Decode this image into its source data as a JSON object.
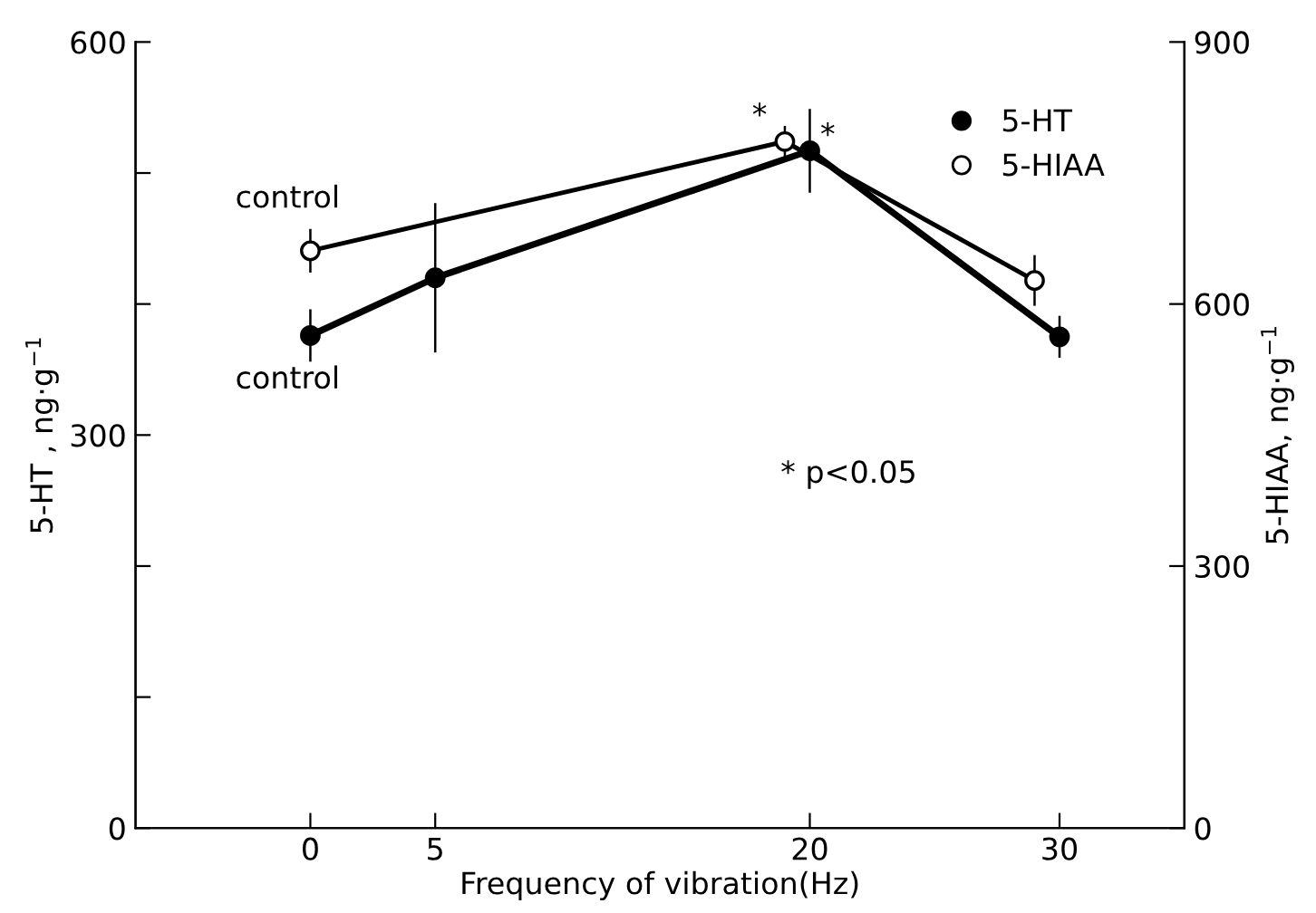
{
  "chart_data": {
    "type": "line",
    "xlabel": "Frequency of vibration(Hz)",
    "ylabel": "5-HT , ng·g$^{−1}$",
    "y2label": "5-HIAA, ng·g$^{−1}$",
    "xlim": [
      -7,
      35
    ],
    "xticks": [
      0,
      5,
      20,
      30
    ],
    "ylim": [
      0,
      600
    ],
    "yticks": [
      0,
      {
        "value": 100,
        "label": null
      },
      {
        "value": 200,
        "label": null
      },
      300,
      {
        "value": 400,
        "label": null
      },
      {
        "value": 500,
        "label": null
      },
      600
    ],
    "y2lim": [
      0,
      900
    ],
    "y2ticks": [
      0,
      300,
      600,
      900
    ],
    "grid": false,
    "legend": "top right",
    "marker": "circle",
    "line_style": "solid",
    "series": [
      {
        "name": "5-HT",
        "color": "#000000",
        "x": [
          0,
          5,
          20,
          30
        ],
        "values": [
          376,
          420,
          517,
          375
        ],
        "errors": [
          20,
          57,
          32,
          16
        ]
      },
      {
        "name": "5-HIAA",
        "color": "#000000",
        "axis": "y2",
        "x": [
          0,
          19,
          29
        ],
        "values": [
          661,
          786,
          627
        ],
        "errors": [
          25,
          18,
          29
        ]
      }
    ],
    "annotations": [
      "control",
      "control",
      "*",
      "*",
      "* p<0.05"
    ]
  }
}
